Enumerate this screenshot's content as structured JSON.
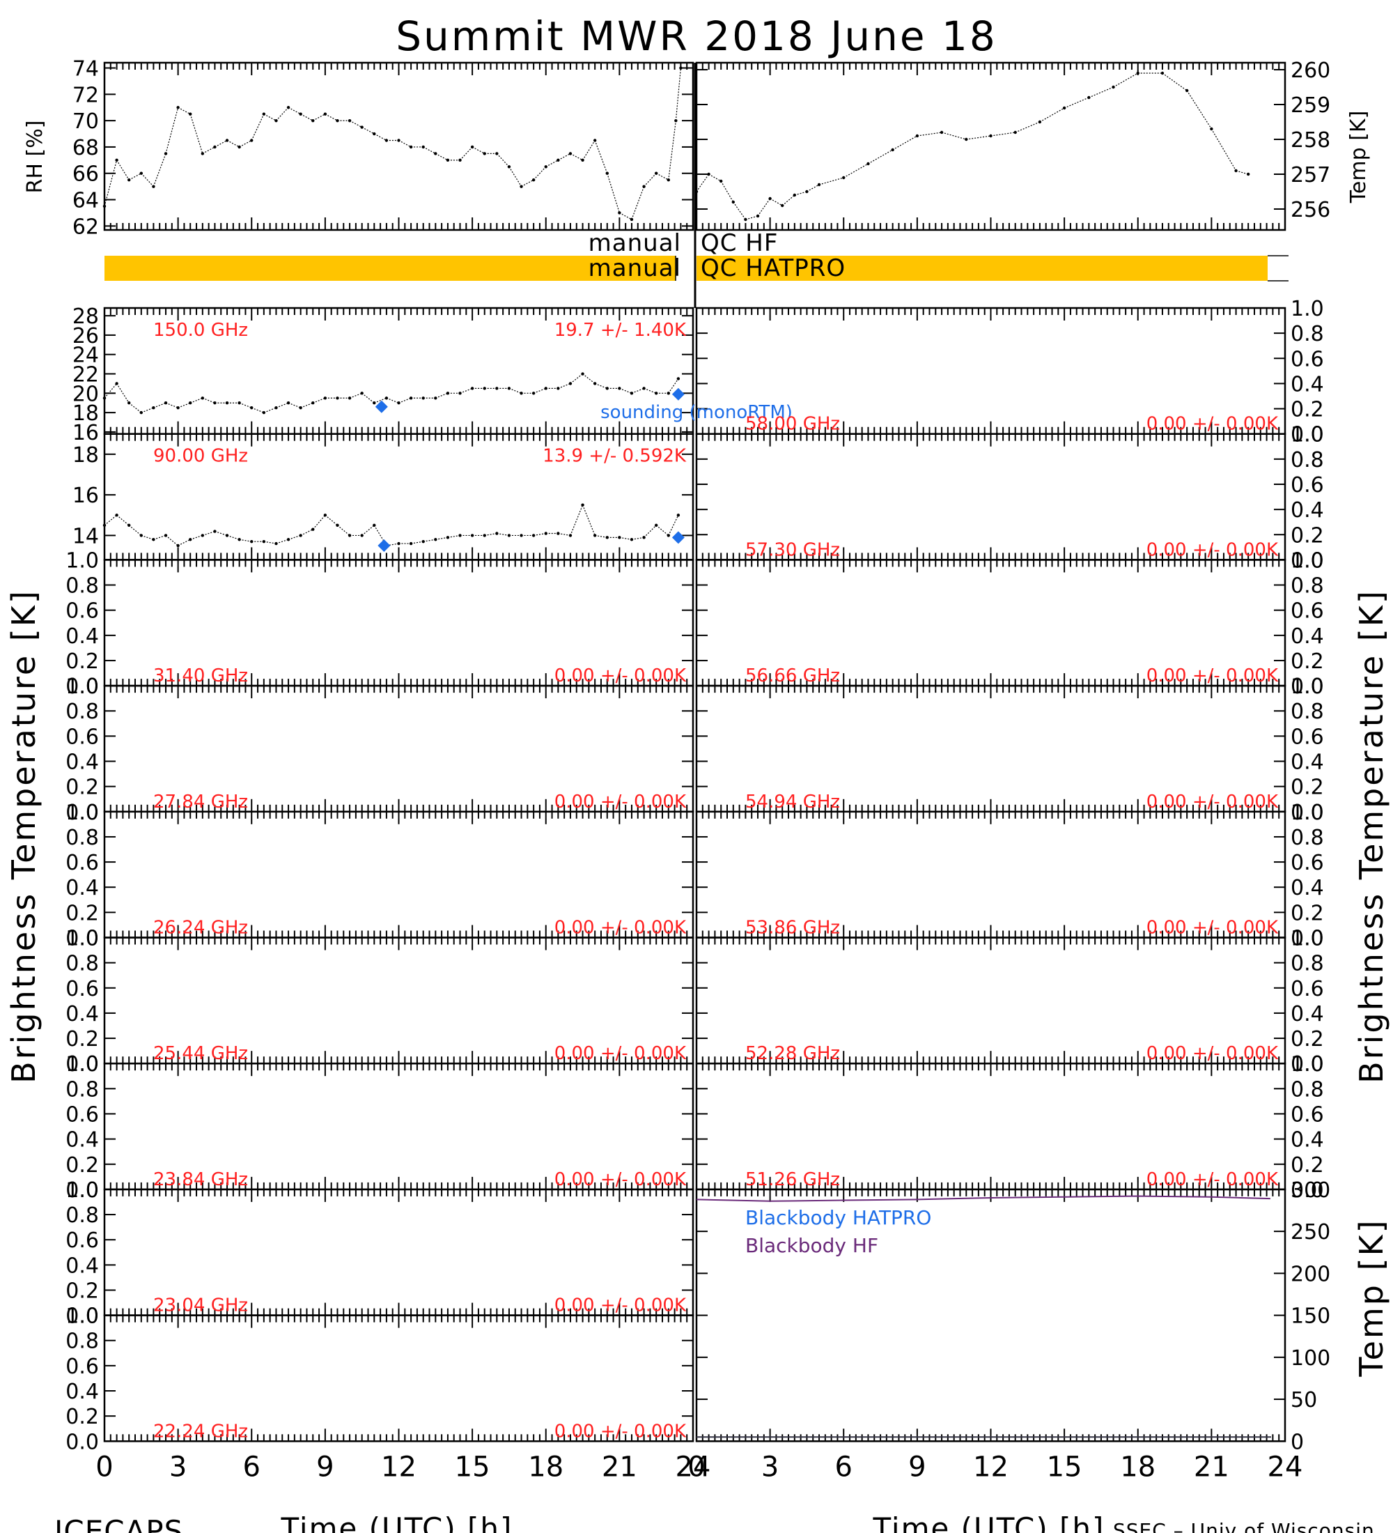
{
  "title": "Summit MWR 2018 June 18",
  "footer": {
    "left": "ICECAPS",
    "right": "SSEC – Univ of Wisconsin",
    "xlabel": "Time (UTC) [h]"
  },
  "colors": {
    "panel_label": "#ff2020",
    "sounding": "#1e6ee8",
    "qc_bar": "#ffc400",
    "blackbody_hatpro": "#1e6ee8",
    "blackbody_hf": "#6a2a7a",
    "data": "#000000"
  },
  "qc": {
    "left_label_top": "manual",
    "left_label_bottom": "manual",
    "right_label_top": "QC HF",
    "right_label_bottom": "QC HATPRO"
  },
  "sounding_label": "sounding (monoRTM)",
  "ylabel_bt": "Brightness Temperature [K]",
  "ylabel_temp": "Temp [K]",
  "ylabel_rh": "RH [%]",
  "x_ticks": [
    "0",
    "3",
    "6",
    "9",
    "12",
    "15",
    "18",
    "21",
    "24"
  ],
  "chart_data": [
    {
      "id": "rh",
      "type": "scatter",
      "ylabel": "RH [%]",
      "ylim": [
        61.7,
        74.4
      ],
      "yticks": [
        "62",
        "64",
        "66",
        "68",
        "70",
        "72",
        "74"
      ],
      "xlim": [
        0,
        24
      ],
      "points": [
        [
          0,
          63.5
        ],
        [
          0.5,
          67
        ],
        [
          1,
          65.5
        ],
        [
          1.5,
          66
        ],
        [
          2,
          65
        ],
        [
          2.5,
          67.5
        ],
        [
          3,
          71
        ],
        [
          3.5,
          70.5
        ],
        [
          4,
          67.5
        ],
        [
          4.5,
          68
        ],
        [
          5,
          68.5
        ],
        [
          5.5,
          68
        ],
        [
          6,
          68.5
        ],
        [
          6.5,
          70.5
        ],
        [
          7,
          70
        ],
        [
          7.5,
          71
        ],
        [
          8,
          70.5
        ],
        [
          8.5,
          70
        ],
        [
          9,
          70.5
        ],
        [
          9.5,
          70
        ],
        [
          10,
          70
        ],
        [
          10.5,
          69.5
        ],
        [
          11,
          69
        ],
        [
          11.5,
          68.5
        ],
        [
          12,
          68.5
        ],
        [
          12.5,
          68
        ],
        [
          13,
          68
        ],
        [
          13.5,
          67.5
        ],
        [
          14,
          67
        ],
        [
          14.5,
          67
        ],
        [
          15,
          68
        ],
        [
          15.5,
          67.5
        ],
        [
          16,
          67.5
        ],
        [
          16.5,
          66.5
        ],
        [
          17,
          65
        ],
        [
          17.5,
          65.5
        ],
        [
          18,
          66.5
        ],
        [
          18.5,
          67
        ],
        [
          19,
          67.5
        ],
        [
          19.5,
          67
        ],
        [
          20,
          68.5
        ],
        [
          20.5,
          66
        ],
        [
          21,
          63
        ],
        [
          21.5,
          62.5
        ],
        [
          22,
          65
        ],
        [
          22.5,
          66
        ],
        [
          23,
          65.5
        ],
        [
          23.3,
          70
        ],
        [
          23.5,
          74
        ]
      ]
    },
    {
      "id": "temp",
      "type": "scatter",
      "ylabel": "Temp [K]",
      "ylim": [
        255.4,
        260.2
      ],
      "yticks": [
        "256",
        "257",
        "258",
        "259",
        "260"
      ],
      "xlim": [
        0,
        24
      ],
      "points": [
        [
          0,
          256.5
        ],
        [
          0.5,
          257
        ],
        [
          1,
          256.8
        ],
        [
          1.5,
          256.2
        ],
        [
          2,
          255.7
        ],
        [
          2.5,
          255.8
        ],
        [
          3,
          256.3
        ],
        [
          3.5,
          256.1
        ],
        [
          4,
          256.4
        ],
        [
          4.5,
          256.5
        ],
        [
          5,
          256.7
        ],
        [
          6,
          256.9
        ],
        [
          7,
          257.3
        ],
        [
          8,
          257.7
        ],
        [
          9,
          258.1
        ],
        [
          10,
          258.2
        ],
        [
          11,
          258
        ],
        [
          12,
          258.1
        ],
        [
          13,
          258.2
        ],
        [
          14,
          258.5
        ],
        [
          15,
          258.9
        ],
        [
          16,
          259.2
        ],
        [
          17,
          259.5
        ],
        [
          18,
          259.9
        ],
        [
          19,
          259.9
        ],
        [
          20,
          259.4
        ],
        [
          21,
          258.3
        ],
        [
          22,
          257.1
        ],
        [
          22.5,
          257
        ]
      ]
    },
    {
      "id": "tb-150",
      "type": "scatter",
      "label": "150.0 GHz",
      "stat": "19.7 +/-  1.40K",
      "ylim": [
        15.8,
        28.8
      ],
      "yticks": [
        "16",
        "18",
        "20",
        "22",
        "24",
        "26",
        "28"
      ],
      "xlim": [
        0,
        24
      ],
      "points": [
        [
          0,
          19.5
        ],
        [
          0.5,
          21
        ],
        [
          1,
          19
        ],
        [
          1.5,
          18
        ],
        [
          2,
          18.5
        ],
        [
          2.5,
          19
        ],
        [
          3,
          18.5
        ],
        [
          3.5,
          19
        ],
        [
          4,
          19.5
        ],
        [
          4.5,
          19
        ],
        [
          5,
          19
        ],
        [
          5.5,
          19
        ],
        [
          6,
          18.5
        ],
        [
          6.5,
          18
        ],
        [
          7,
          18.5
        ],
        [
          7.5,
          19
        ],
        [
          8,
          18.5
        ],
        [
          8.5,
          19
        ],
        [
          9,
          19.5
        ],
        [
          9.5,
          19.5
        ],
        [
          10,
          19.5
        ],
        [
          10.5,
          20
        ],
        [
          11,
          19
        ],
        [
          11.5,
          19.5
        ],
        [
          12,
          19
        ],
        [
          12.5,
          19.5
        ],
        [
          13,
          19.5
        ],
        [
          13.5,
          19.5
        ],
        [
          14,
          20
        ],
        [
          14.5,
          20
        ],
        [
          15,
          20.5
        ],
        [
          15.5,
          20.5
        ],
        [
          16,
          20.5
        ],
        [
          16.5,
          20.5
        ],
        [
          17,
          20
        ],
        [
          17.5,
          20
        ],
        [
          18,
          20.5
        ],
        [
          18.5,
          20.5
        ],
        [
          19,
          21
        ],
        [
          19.5,
          22
        ],
        [
          20,
          21
        ],
        [
          20.5,
          20.5
        ],
        [
          21,
          20.5
        ],
        [
          21.5,
          20
        ],
        [
          22,
          20.5
        ],
        [
          22.5,
          20
        ],
        [
          23,
          20
        ],
        [
          23.4,
          21.5
        ]
      ],
      "sounding": [
        [
          11.3,
          18.6
        ],
        [
          23.4,
          19.9
        ]
      ]
    },
    {
      "id": "tb-90",
      "type": "scatter",
      "label": "90.00 GHz",
      "stat": "13.9 +/- 0.592K",
      "ylim": [
        12.8,
        19.0
      ],
      "yticks": [
        "14",
        "16",
        "18"
      ],
      "xlim": [
        0,
        24
      ],
      "points": [
        [
          0,
          14.5
        ],
        [
          0.5,
          15
        ],
        [
          1,
          14.5
        ],
        [
          1.5,
          14
        ],
        [
          2,
          13.8
        ],
        [
          2.5,
          14
        ],
        [
          3,
          13.5
        ],
        [
          3.5,
          13.8
        ],
        [
          4,
          14
        ],
        [
          4.5,
          14.2
        ],
        [
          5,
          14
        ],
        [
          5.5,
          13.8
        ],
        [
          6,
          13.7
        ],
        [
          6.5,
          13.7
        ],
        [
          7,
          13.6
        ],
        [
          7.5,
          13.8
        ],
        [
          8,
          14
        ],
        [
          8.5,
          14.3
        ],
        [
          9,
          15
        ],
        [
          9.5,
          14.5
        ],
        [
          10,
          14
        ],
        [
          10.5,
          14
        ],
        [
          11,
          14.5
        ],
        [
          11.5,
          13.5
        ],
        [
          12,
          13.6
        ],
        [
          12.5,
          13.6
        ],
        [
          13,
          13.7
        ],
        [
          13.5,
          13.8
        ],
        [
          14,
          13.9
        ],
        [
          14.5,
          14
        ],
        [
          15,
          14
        ],
        [
          15.5,
          14
        ],
        [
          16,
          14.1
        ],
        [
          16.5,
          14
        ],
        [
          17,
          14
        ],
        [
          17.5,
          14
        ],
        [
          18,
          14.1
        ],
        [
          18.5,
          14.1
        ],
        [
          19,
          14
        ],
        [
          19.5,
          15.5
        ],
        [
          20,
          14
        ],
        [
          20.5,
          13.9
        ],
        [
          21,
          13.9
        ],
        [
          21.5,
          13.8
        ],
        [
          22,
          13.9
        ],
        [
          22.5,
          14.5
        ],
        [
          23,
          14
        ],
        [
          23.4,
          15
        ]
      ],
      "sounding": [
        [
          11.4,
          13.5
        ],
        [
          23.4,
          13.9
        ]
      ]
    },
    {
      "id": "tb-58.00",
      "type": "scatter",
      "label": "58.00 GHz",
      "stat": "0.00 +/-  0.00K",
      "ylim": [
        0,
        1
      ],
      "points": []
    },
    {
      "id": "tb-57.30",
      "type": "scatter",
      "label": "57.30 GHz",
      "stat": "0.00 +/-  0.00K",
      "ylim": [
        0,
        1
      ],
      "points": []
    },
    {
      "id": "tb-31.40",
      "type": "scatter",
      "label": "31.40 GHz",
      "stat": "0.00 +/-  0.00K",
      "ylim": [
        0,
        1
      ],
      "points": []
    },
    {
      "id": "tb-56.66",
      "type": "scatter",
      "label": "56.66 GHz",
      "stat": "0.00 +/-  0.00K",
      "ylim": [
        0,
        1
      ],
      "points": []
    },
    {
      "id": "tb-27.84",
      "type": "scatter",
      "label": "27.84 GHz",
      "stat": "0.00 +/-  0.00K",
      "ylim": [
        0,
        1
      ],
      "points": []
    },
    {
      "id": "tb-54.94",
      "type": "scatter",
      "label": "54.94 GHz",
      "stat": "0.00 +/-  0.00K",
      "ylim": [
        0,
        1
      ],
      "points": []
    },
    {
      "id": "tb-26.24",
      "type": "scatter",
      "label": "26.24 GHz",
      "stat": "0.00 +/-  0.00K",
      "ylim": [
        0,
        1
      ],
      "points": []
    },
    {
      "id": "tb-53.86",
      "type": "scatter",
      "label": "53.86 GHz",
      "stat": "0.00 +/-  0.00K",
      "ylim": [
        0,
        1
      ],
      "points": []
    },
    {
      "id": "tb-25.44",
      "type": "scatter",
      "label": "25.44 GHz",
      "stat": "0.00 +/-  0.00K",
      "ylim": [
        0,
        1
      ],
      "points": []
    },
    {
      "id": "tb-52.28",
      "type": "scatter",
      "label": "52.28 GHz",
      "stat": "0.00 +/-  0.00K",
      "ylim": [
        0,
        1
      ],
      "points": []
    },
    {
      "id": "tb-23.84",
      "type": "scatter",
      "label": "23.84 GHz",
      "stat": "0.00 +/-  0.00K",
      "ylim": [
        0,
        1
      ],
      "points": []
    },
    {
      "id": "tb-51.26",
      "type": "scatter",
      "label": "51.26 GHz",
      "stat": "0.00 +/-  0.00K",
      "ylim": [
        0,
        1
      ],
      "points": []
    },
    {
      "id": "tb-23.04",
      "type": "scatter",
      "label": "23.04 GHz",
      "stat": "0.00 +/-  0.00K",
      "ylim": [
        0,
        1
      ],
      "points": []
    },
    {
      "id": "tb-22.24",
      "type": "scatter",
      "label": "22.24 GHz",
      "stat": "0.00 +/-  0.00K",
      "ylim": [
        0,
        1
      ],
      "points": []
    },
    {
      "id": "blackbody",
      "type": "line",
      "ylabel": "Temp [K]",
      "ylim": [
        0,
        300
      ],
      "yticks": [
        "0",
        "50",
        "100",
        "150",
        "200",
        "250",
        "300"
      ],
      "xlim": [
        0,
        24
      ],
      "series": [
        {
          "name": "Blackbody HATPRO",
          "values": []
        },
        {
          "name": "Blackbody HF",
          "values": [
            [
              0,
              288
            ],
            [
              3,
              286
            ],
            [
              6,
              287
            ],
            [
              9,
              288
            ],
            [
              12,
              290
            ],
            [
              15,
              291
            ],
            [
              18,
              292
            ],
            [
              21,
              291
            ],
            [
              23.4,
              289
            ]
          ]
        }
      ]
    }
  ]
}
